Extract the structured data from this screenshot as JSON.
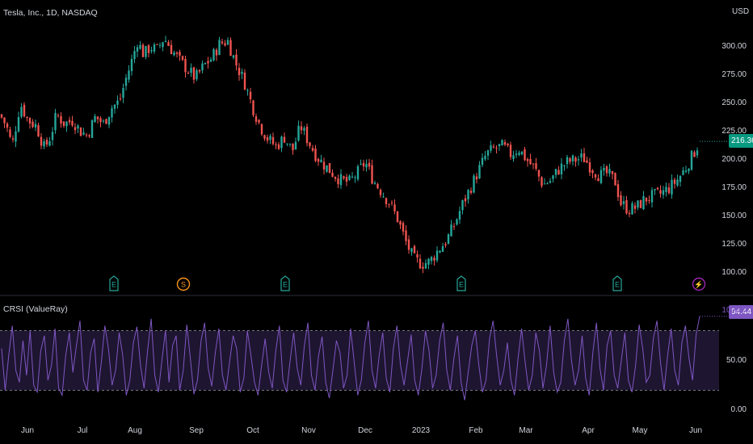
{
  "header": {
    "symbol_title": "Tesla, Inc., 1D, NASDAQ",
    "currency": "USD",
    "indicator_title": "CRSI (ValueRay)"
  },
  "badges": {
    "last_price": "216.36",
    "crsi_value": "94.44"
  },
  "colors": {
    "up": "#26a69a",
    "down": "#ef5350",
    "crsi_line": "#7e57c2",
    "crsi_band": "#1e1530",
    "event_earnings": "#26a69a",
    "event_dividend": "#f7931a",
    "event_split": "#9c27b0"
  },
  "event_markers": [
    {
      "icon": "earnings-e-icon",
      "label": "E"
    },
    {
      "icon": "dividend-s-icon",
      "label": "S"
    },
    {
      "icon": "earnings-e-icon",
      "label": "E"
    },
    {
      "icon": "earnings-e-icon",
      "label": "E"
    },
    {
      "icon": "earnings-e-icon",
      "label": "E"
    },
    {
      "icon": "split-lightning-icon",
      "label": "⚡"
    }
  ],
  "chart_data": [
    {
      "type": "candlestick",
      "title": "Tesla, Inc., 1D, NASDAQ",
      "ylabel": "USD",
      "ylim": [
        95,
        320
      ],
      "y_ticks": [
        "300.00",
        "275.00",
        "250.00",
        "225.00",
        "200.00",
        "175.00",
        "150.00",
        "125.00",
        "100.00"
      ],
      "x_ticks": [
        "Jun",
        "Jul",
        "Aug",
        "Sep",
        "Oct",
        "Nov",
        "Dec",
        "2023",
        "Feb",
        "Mar",
        "Apr",
        "May",
        "Jun"
      ],
      "close_path": [
        [
          0,
          240
        ],
        [
          8,
          230
        ],
        [
          15,
          212
        ],
        [
          25,
          250
        ],
        [
          35,
          235
        ],
        [
          45,
          230
        ],
        [
          55,
          210
        ],
        [
          62,
          220
        ],
        [
          70,
          240
        ],
        [
          80,
          232
        ],
        [
          90,
          235
        ],
        [
          100,
          225
        ],
        [
          108,
          222
        ],
        [
          118,
          238
        ],
        [
          128,
          232
        ],
        [
          138,
          246
        ],
        [
          148,
          252
        ],
        [
          155,
          270
        ],
        [
          162,
          285
        ],
        [
          170,
          305
        ],
        [
          178,
          293
        ],
        [
          186,
          300
        ],
        [
          194,
          297
        ],
        [
          203,
          308
        ],
        [
          212,
          298
        ],
        [
          222,
          288
        ],
        [
          232,
          280
        ],
        [
          242,
          272
        ],
        [
          252,
          283
        ],
        [
          262,
          290
        ],
        [
          272,
          303
        ],
        [
          282,
          305
        ],
        [
          292,
          285
        ],
        [
          302,
          270
        ],
        [
          312,
          248
        ],
        [
          322,
          230
        ],
        [
          332,
          218
        ],
        [
          342,
          212
        ],
        [
          352,
          220
        ],
        [
          362,
          208
        ],
        [
          372,
          230
        ],
        [
          382,
          216
        ],
        [
          392,
          203
        ],
        [
          402,
          195
        ],
        [
          412,
          188
        ],
        [
          422,
          182
        ],
        [
          432,
          180
        ],
        [
          442,
          188
        ],
        [
          452,
          198
        ],
        [
          462,
          182
        ],
        [
          472,
          172
        ],
        [
          482,
          162
        ],
        [
          492,
          148
        ],
        [
          502,
          128
        ],
        [
          512,
          112
        ],
        [
          522,
          108
        ],
        [
          532,
          110
        ],
        [
          542,
          120
        ],
        [
          552,
          128
        ],
        [
          562,
          142
        ],
        [
          572,
          160
        ],
        [
          582,
          175
        ],
        [
          592,
          190
        ],
        [
          602,
          205
        ],
        [
          612,
          210
        ],
        [
          622,
          212
        ],
        [
          632,
          205
        ],
        [
          642,
          210
        ],
        [
          652,
          200
        ],
        [
          662,
          192
        ],
        [
          672,
          178
        ],
        [
          682,
          182
        ],
        [
          692,
          192
        ],
        [
          702,
          198
        ],
        [
          712,
          200
        ],
        [
          722,
          202
        ],
        [
          732,
          193
        ],
        [
          742,
          186
        ],
        [
          752,
          188
        ],
        [
          762,
          180
        ],
        [
          768,
          162
        ],
        [
          778,
          156
        ],
        [
          788,
          158
        ],
        [
          798,
          165
        ],
        [
          808,
          168
        ],
        [
          818,
          170
        ],
        [
          828,
          175
        ],
        [
          838,
          182
        ],
        [
          848,
          192
        ],
        [
          858,
          205
        ],
        [
          866,
          216.36
        ]
      ],
      "last": 216.36
    },
    {
      "type": "line",
      "title": "CRSI (ValueRay)",
      "ylim": [
        0,
        100
      ],
      "y_ticks": [
        "100.00",
        "50.00",
        "0.00"
      ],
      "band_upper": 80,
      "band_lower": 20,
      "values": [
        62,
        20,
        55,
        85,
        40,
        28,
        70,
        35,
        80,
        25,
        18,
        60,
        75,
        30,
        45,
        82,
        22,
        15,
        55,
        78,
        38,
        65,
        90,
        30,
        20,
        58,
        72,
        18,
        48,
        85,
        62,
        25,
        40,
        78,
        55,
        15,
        30,
        68,
        84,
        45,
        22,
        60,
        92,
        35,
        18,
        50,
        80,
        28,
        65,
        75,
        20,
        40,
        86,
        52,
        16,
        30,
        70,
        88,
        42,
        24,
        58,
        82,
        35,
        20,
        48,
        75,
        62,
        18,
        32,
        80,
        55,
        28,
        15,
        45,
        72,
        38,
        22,
        60,
        85,
        30,
        18,
        50,
        78,
        42,
        25,
        65,
        88,
        35,
        20,
        55,
        74,
        28,
        12,
        40,
        70,
        58,
        22,
        35,
        82,
        48,
        15,
        30,
        68,
        90,
        40,
        22,
        55,
        78,
        32,
        18,
        62,
        85,
        45,
        25,
        50,
        76,
        30,
        15,
        42,
        80,
        60,
        22,
        35,
        70,
        88,
        40,
        20,
        52,
        75,
        28,
        10,
        38,
        65,
        80,
        45,
        18,
        30,
        72,
        90,
        55,
        25,
        40,
        68,
        30,
        15,
        52,
        82,
        48,
        20,
        35,
        78,
        60,
        22,
        45,
        85,
        38,
        18,
        28,
        70,
        92,
        50,
        25,
        40,
        75,
        32,
        15,
        58,
        88,
        42,
        20,
        65,
        80,
        35,
        22,
        50,
        78,
        30,
        18,
        45,
        86,
        62,
        28,
        35,
        72,
        90,
        48,
        20,
        55,
        82,
        40,
        25,
        68,
        85,
        52,
        30,
        76,
        94.44
      ]
    }
  ]
}
